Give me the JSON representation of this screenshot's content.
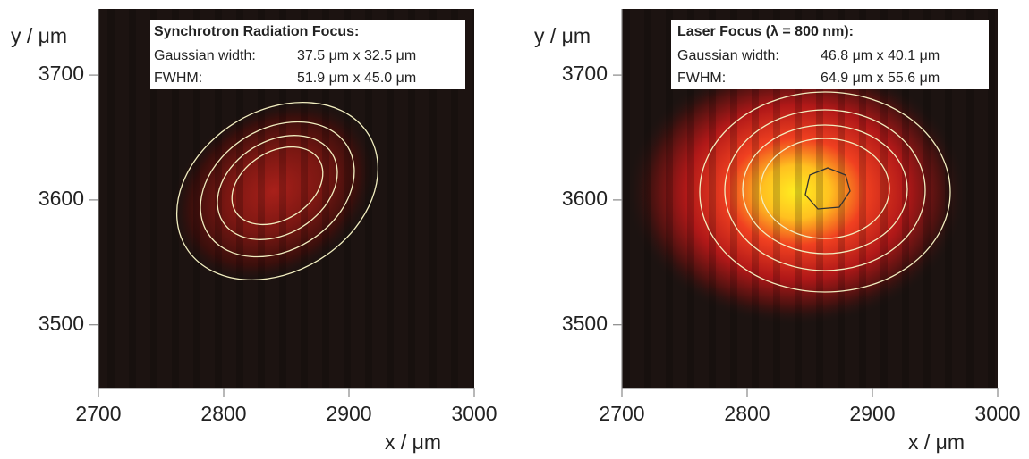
{
  "chart_data": [
    {
      "type": "heatmap",
      "xlabel": "x / μm",
      "ylabel": "y / μm",
      "xlim": [
        2700,
        3000
      ],
      "ylim": [
        3449,
        3753
      ],
      "xticks": [
        2700,
        2800,
        2900,
        3000
      ],
      "yticks": [
        3500,
        3600,
        3700
      ],
      "annotation": {
        "title": "Synchrotron Radiation Focus:",
        "rows": [
          [
            "Gaussian width:",
            "37.5 μm x 32.5 μm"
          ],
          [
            "FWHM:",
            "51.9 μm x 45.0 μm"
          ]
        ]
      }
    },
    {
      "type": "heatmap",
      "xlabel": "x / μm",
      "ylabel": "y / μm",
      "xlim": [
        2700,
        3000
      ],
      "ylim": [
        3449,
        3753
      ],
      "xticks": [
        2700,
        2800,
        2900,
        3000
      ],
      "yticks": [
        3500,
        3600,
        3700
      ],
      "annotation": {
        "title": "Laser Focus (λ = 800 nm):",
        "rows": [
          [
            "Gaussian width:",
            "46.8 μm x 40.1 μm"
          ],
          [
            "FWHM:",
            "64.9 μm x 55.6 μm"
          ]
        ]
      }
    }
  ]
}
